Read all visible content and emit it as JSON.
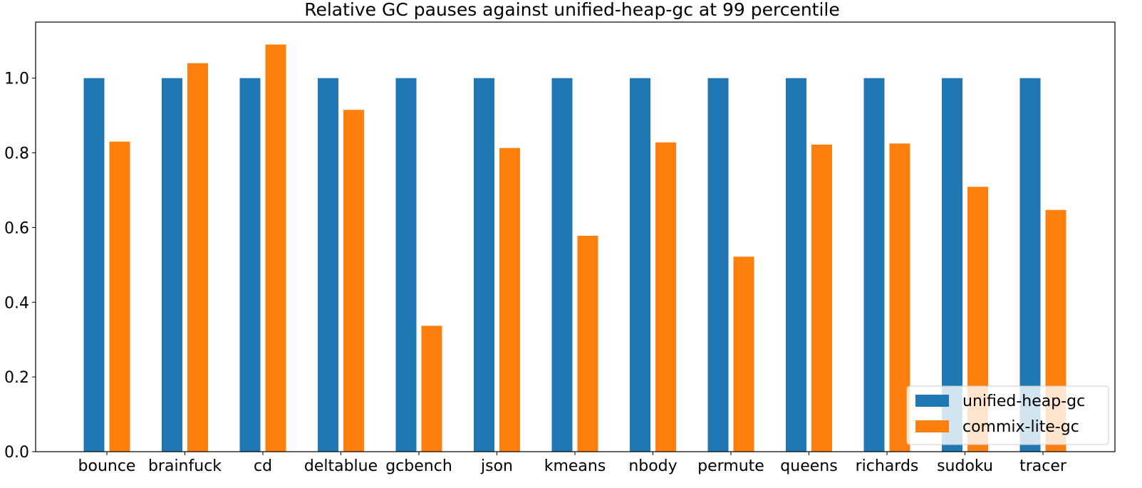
{
  "chart_data": {
    "type": "bar",
    "title": "Relative GC pauses against unified-heap-gc at 99 percentile",
    "xlabel": "",
    "ylabel": "",
    "categories": [
      "bounce",
      "brainfuck",
      "cd",
      "deltablue",
      "gcbench",
      "json",
      "kmeans",
      "nbody",
      "permute",
      "queens",
      "richards",
      "sudoku",
      "tracer"
    ],
    "series": [
      {
        "name": "unified-heap-gc",
        "color": "#1f77b4",
        "values": [
          1.0,
          1.0,
          1.0,
          1.0,
          1.0,
          1.0,
          1.0,
          1.0,
          1.0,
          1.0,
          1.0,
          1.0,
          1.0
        ]
      },
      {
        "name": "commix-lite-gc",
        "color": "#ff7f0e",
        "values": [
          0.83,
          1.04,
          1.09,
          0.915,
          0.337,
          0.813,
          0.578,
          0.828,
          0.522,
          0.822,
          0.825,
          0.709,
          0.647
        ]
      }
    ],
    "ylim": [
      0,
      1.15
    ],
    "yticks": [
      "0.0",
      "0.2",
      "0.4",
      "0.6",
      "0.8",
      "1.0"
    ],
    "grid": false,
    "legend": "lower right"
  }
}
